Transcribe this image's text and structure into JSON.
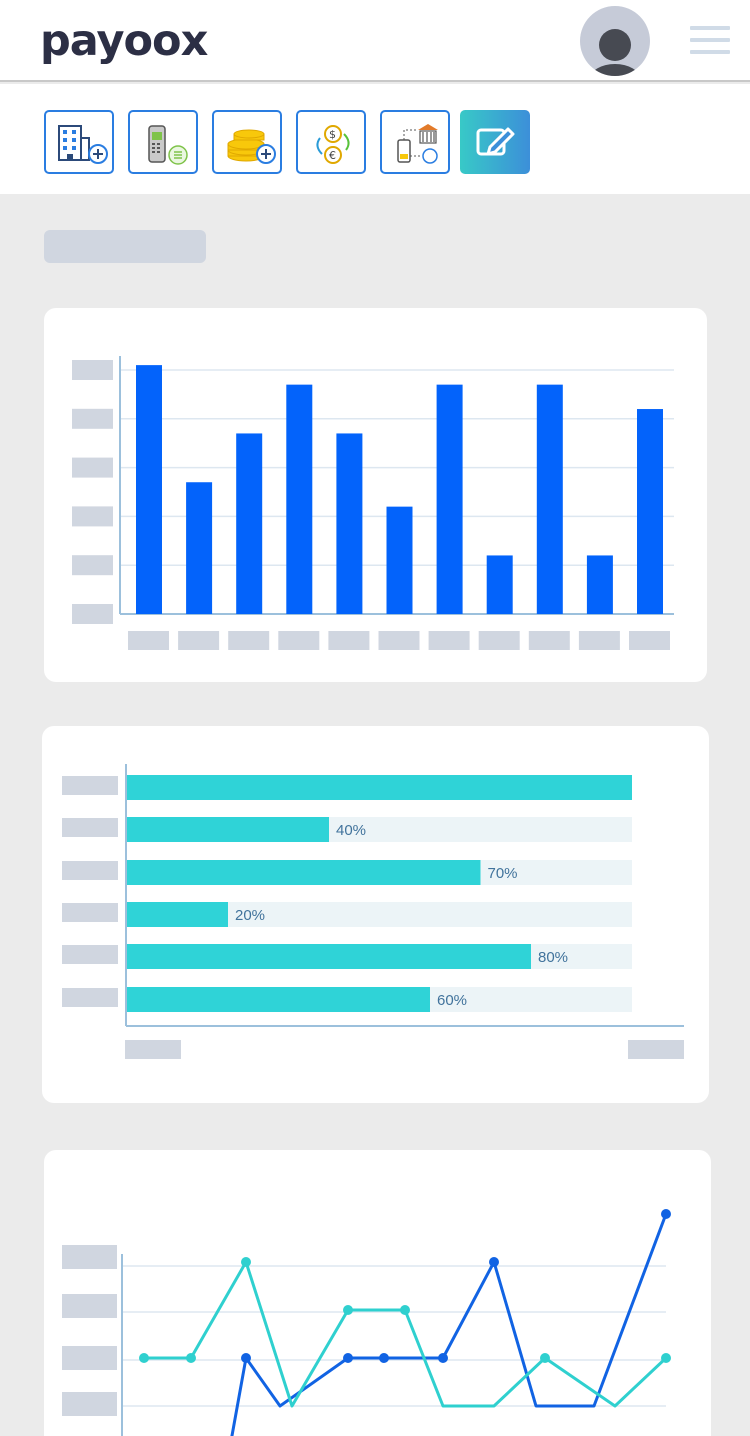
{
  "app": {
    "logo_text": "payoox",
    "brand_color": "#2c2f45",
    "logo_accent": "#5db9e3"
  },
  "header": {
    "avatar_icon": "user-avatar-icon",
    "menu_icon": "hamburger-menu-icon"
  },
  "toolbar": {
    "buttons": [
      {
        "icon": "add-building-icon"
      },
      {
        "icon": "pos-terminal-icon"
      },
      {
        "icon": "add-coins-icon"
      },
      {
        "icon": "currency-exchange-icon"
      },
      {
        "icon": "mobile-bank-transfer-icon"
      },
      {
        "icon": "edit-icon",
        "active": true
      }
    ]
  },
  "colors": {
    "bar_blue": "#0363fb",
    "bar_teal": "#2fd3d7",
    "track": "#ecf4f7",
    "placeholder": "#d0d6e0",
    "line_blue": "#1163e3",
    "line_teal": "#2fd0cf"
  },
  "chart_data": [
    {
      "type": "bar",
      "orientation": "vertical",
      "title": "",
      "ylim": [
        0,
        5
      ],
      "grid": true,
      "values": [
        5.1,
        2.7,
        3.7,
        4.7,
        3.7,
        2.2,
        4.7,
        1.2,
        4.7,
        1.2,
        4.2
      ]
    },
    {
      "type": "bar",
      "orientation": "horizontal",
      "title": "",
      "xlim": [
        0,
        100
      ],
      "grid": false,
      "values": [
        100,
        40,
        70,
        20,
        80,
        60
      ],
      "labels": [
        "",
        "40%",
        "70%",
        "20%",
        "80%",
        "60%"
      ]
    },
    {
      "type": "line",
      "title": "",
      "grid": true,
      "series": [
        {
          "color": "#1163e3",
          "values": [
            null,
            null,
            1,
            0,
            1,
            1,
            1,
            3,
            0,
            0,
            4
          ]
        },
        {
          "color": "#2fd0cf",
          "values": [
            1,
            1,
            3,
            0,
            2,
            2,
            0,
            0,
            1,
            0,
            1
          ]
        }
      ]
    }
  ]
}
